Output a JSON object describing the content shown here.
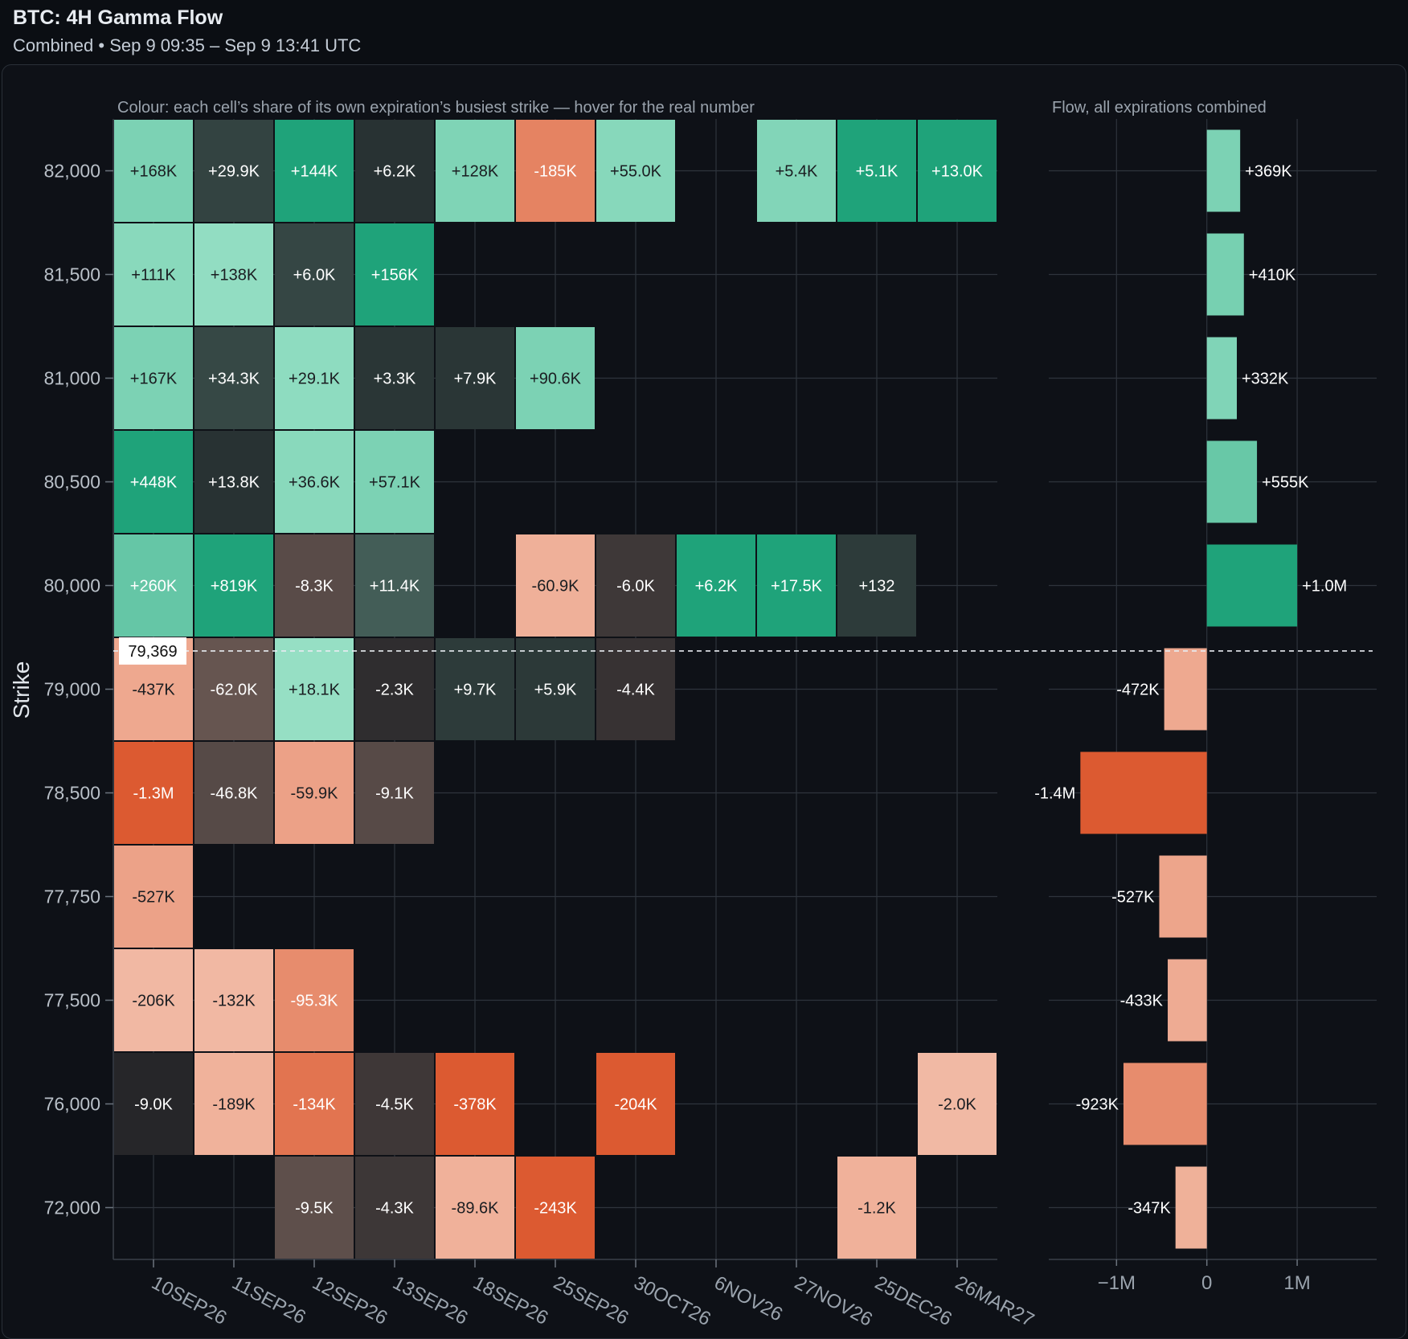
{
  "header": {
    "title": "BTC: 4H Gamma Flow",
    "subtitle": "Combined • Sep 9 09:35 – Sep 9 13:41 UTC"
  },
  "captions": {
    "heatmap": "Colour: each cell’s share of its own expiration’s busiest strike — hover for the real number",
    "bars": "Flow, all expirations combined"
  },
  "colors": {
    "background": "#0e1117",
    "positive_strong": "#1fa37a",
    "positive_light": "#97e0c5",
    "negative_strong": "#dc5a31",
    "negative_light": "#f2bca7",
    "neutral_dark": "#1b1e22"
  },
  "chart_data": [
    {
      "type": "heatmap",
      "ylabel": "Strike",
      "xlabel": "",
      "strikes": [
        "82,000",
        "81,500",
        "81,000",
        "80,500",
        "80,000",
        "79,000",
        "78,500",
        "77,750",
        "77,500",
        "76,000",
        "72,000"
      ],
      "expirations": [
        "10SEP26",
        "11SEP26",
        "12SEP26",
        "13SEP26",
        "18SEP26",
        "25SEP26",
        "30OCT26",
        "6NOV26",
        "27NOV26",
        "25DEC26",
        "26MAR27"
      ],
      "spot_label": "79,369",
      "cells": [
        [
          {
            "label": "+168K",
            "value": 168000,
            "share": 0.37
          },
          {
            "label": "+29.9K",
            "value": 29900,
            "share": 0.036
          },
          {
            "label": "+144K",
            "value": 144000,
            "share": 1.0
          },
          {
            "label": "+6.2K",
            "value": 6200,
            "share": 0.017
          },
          {
            "label": "+128K",
            "value": 128000,
            "share": 0.34
          },
          {
            "label": "-185K",
            "value": -185000,
            "share": 0.76
          },
          {
            "label": "+55.0K",
            "value": 55000,
            "share": 0.27
          },
          null,
          {
            "label": "+5.4K",
            "value": 5400,
            "share": 0.31
          },
          {
            "label": "+5.1K",
            "value": 5100,
            "share": 1.0
          },
          {
            "label": "+13.0K",
            "value": 13000,
            "share": 1.0
          }
        ],
        [
          {
            "label": "+111K",
            "value": 111000,
            "share": 0.25
          },
          {
            "label": "+138K",
            "value": 138000,
            "share": 0.17
          },
          {
            "label": "+6.0K",
            "value": 6000,
            "share": 0.04
          },
          {
            "label": "+156K",
            "value": 156000,
            "share": 1.0
          },
          null,
          null,
          null,
          null,
          null,
          null,
          null
        ],
        [
          {
            "label": "+167K",
            "value": 167000,
            "share": 0.37
          },
          {
            "label": "+34.3K",
            "value": 34300,
            "share": 0.042
          },
          {
            "label": "+29.1K",
            "value": 29100,
            "share": 0.2
          },
          {
            "label": "+3.3K",
            "value": 3300,
            "share": 0.021
          },
          {
            "label": "+7.9K",
            "value": 7900,
            "share": 0.021
          },
          {
            "label": "+90.6K",
            "value": 90600,
            "share": 0.37
          },
          null,
          null,
          null,
          null,
          null
        ],
        [
          {
            "label": "+448K",
            "value": 448000,
            "share": 1.0
          },
          {
            "label": "+13.8K",
            "value": 13800,
            "share": 0.017
          },
          {
            "label": "+36.6K",
            "value": 36600,
            "share": 0.25
          },
          {
            "label": "+57.1K",
            "value": 57100,
            "share": 0.37
          },
          null,
          null,
          null,
          null,
          null,
          null,
          null
        ],
        [
          {
            "label": "+260K",
            "value": 260000,
            "share": 0.58
          },
          {
            "label": "+819K",
            "value": 819000,
            "share": 1.0
          },
          {
            "label": "-8.3K",
            "value": -8300,
            "share": 0.06
          },
          {
            "label": "+11.4K",
            "value": 11400,
            "share": 0.07
          },
          null,
          {
            "label": "-60.9K",
            "value": -60900,
            "share": 0.25
          },
          {
            "label": "-6.0K",
            "value": -6000,
            "share": 0.03
          },
          {
            "label": "+6.2K",
            "value": 6200,
            "share": 1.0
          },
          {
            "label": "+17.5K",
            "value": 17500,
            "share": 1.0
          },
          {
            "label": "+132",
            "value": 132,
            "share": 0.026
          },
          null
        ],
        [
          {
            "label": "-437K",
            "value": -437000,
            "share": 0.34
          },
          {
            "label": "-62.0K",
            "value": -62000,
            "share": 0.076
          },
          {
            "label": "+18.1K",
            "value": 18100,
            "share": 0.13
          },
          {
            "label": "-2.3K",
            "value": -2300,
            "share": 0.015
          },
          {
            "label": "+9.7K",
            "value": 9700,
            "share": 0.026
          },
          {
            "label": "+5.9K",
            "value": 5900,
            "share": 0.024
          },
          {
            "label": "-4.4K",
            "value": -4400,
            "share": 0.022
          },
          null,
          null,
          null,
          null
        ],
        [
          {
            "label": "-1.3M",
            "value": -1300000,
            "share": 1.0
          },
          {
            "label": "-46.8K",
            "value": -46800,
            "share": 0.057
          },
          {
            "label": "-59.9K",
            "value": -59900,
            "share": 0.42
          },
          {
            "label": "-9.1K",
            "value": -9100,
            "share": 0.058
          },
          null,
          null,
          null,
          null,
          null,
          null,
          null
        ],
        [
          {
            "label": "-527K",
            "value": -527000,
            "share": 0.41
          },
          null,
          null,
          null,
          null,
          null,
          null,
          null,
          null,
          null,
          null
        ],
        [
          {
            "label": "-206K",
            "value": -206000,
            "share": 0.16
          },
          {
            "label": "-132K",
            "value": -132000,
            "share": 0.16
          },
          {
            "label": "-95.3K",
            "value": -95300,
            "share": 0.66
          },
          null,
          null,
          null,
          null,
          null,
          null,
          null,
          null
        ],
        [
          {
            "label": "-9.0K",
            "value": -9000,
            "share": 0.007
          },
          {
            "label": "-189K",
            "value": -189000,
            "share": 0.23
          },
          {
            "label": "-134K",
            "value": -134000,
            "share": 0.93
          },
          {
            "label": "-4.5K",
            "value": -4500,
            "share": 0.029
          },
          {
            "label": "-378K",
            "value": -378000,
            "share": 1.0
          },
          null,
          {
            "label": "-204K",
            "value": -204000,
            "share": 1.0
          },
          null,
          null,
          null,
          {
            "label": "-2.0K",
            "value": -2000,
            "share": 0.15
          }
        ],
        [
          null,
          null,
          {
            "label": "-9.5K",
            "value": -9500,
            "share": 0.066
          },
          {
            "label": "-4.3K",
            "value": -4300,
            "share": 0.028
          },
          {
            "label": "-89.6K",
            "value": -89600,
            "share": 0.24
          },
          {
            "label": "-243K",
            "value": -243000,
            "share": 1.0
          },
          null,
          null,
          null,
          {
            "label": "-1.2K",
            "value": -1200,
            "share": 0.24
          },
          null
        ]
      ]
    },
    {
      "type": "bar",
      "orientation": "horizontal",
      "title": "Flow, all expirations combined",
      "categories": [
        "82,000",
        "81,500",
        "81,000",
        "80,500",
        "80,000",
        "79,000",
        "78,500",
        "77,750",
        "77,500",
        "76,000",
        "72,000"
      ],
      "values": [
        369000,
        410000,
        332000,
        555000,
        1000000,
        -472000,
        -1400000,
        -527000,
        -433000,
        -923000,
        -347000
      ],
      "labels": [
        "+369K",
        "+410K",
        "+332K",
        "+555K",
        "+1.0M",
        "-472K",
        "-1.4M",
        "-527K",
        "-433K",
        "-923K",
        "-347K"
      ],
      "xlim": [
        -1750000,
        1880000
      ],
      "xticks": [
        {
          "value": -1000000,
          "label": "−1M"
        },
        {
          "value": 0,
          "label": "0"
        },
        {
          "value": 1000000,
          "label": "1M"
        }
      ]
    }
  ]
}
